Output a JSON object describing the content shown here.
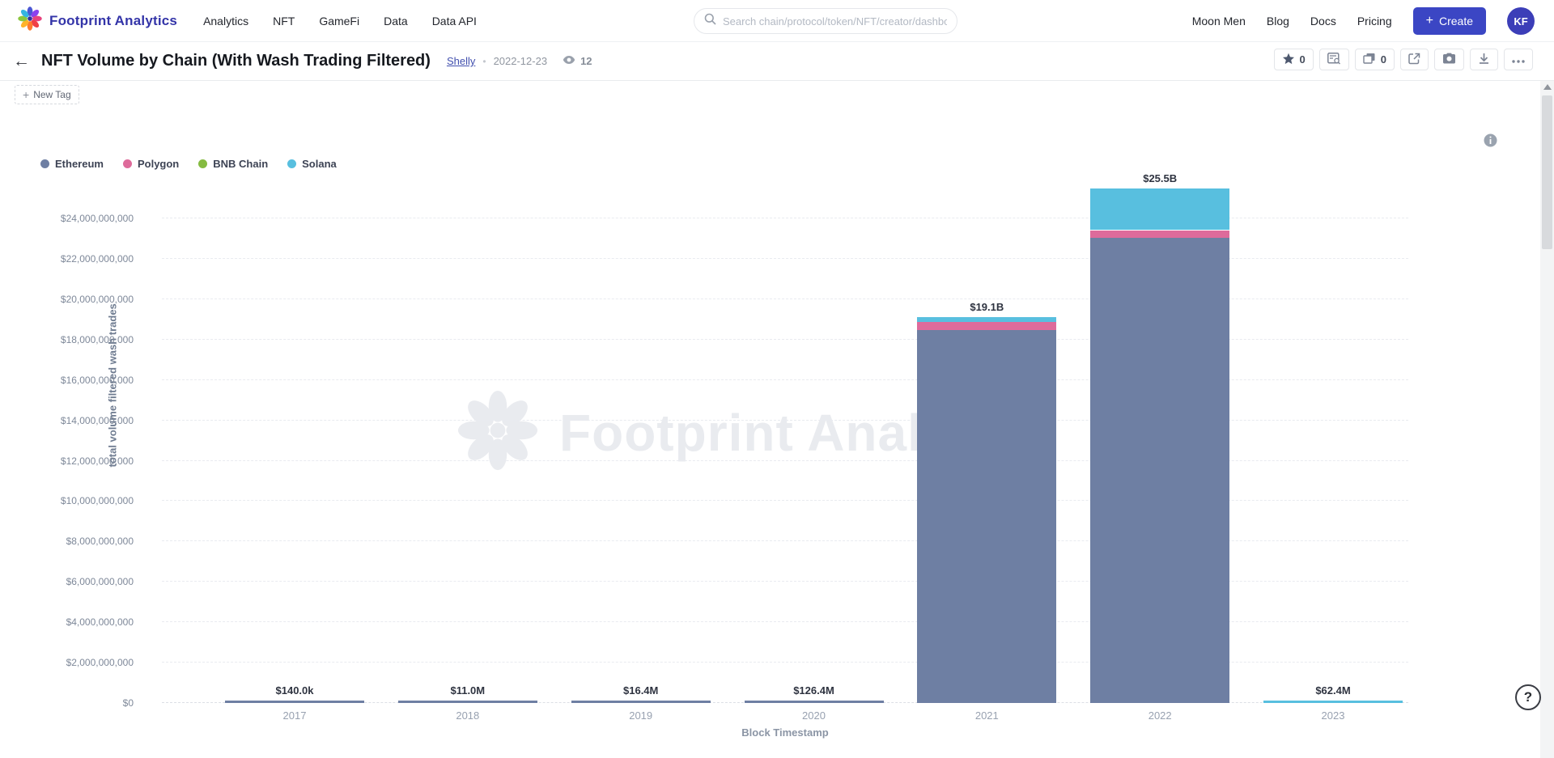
{
  "nav": {
    "brand": "Footprint Analytics",
    "items": [
      "Analytics",
      "NFT",
      "GameFi",
      "Data",
      "Data API"
    ],
    "search_placeholder": "Search chain/protocol/token/NFT/creator/dashboard...",
    "right_items": [
      "Moon Men",
      "Blog",
      "Docs",
      "Pricing"
    ],
    "create_plus": "+",
    "create_label": "Create",
    "avatar": "KF"
  },
  "header": {
    "title": "NFT Volume by Chain (With Wash Trading Filtered)",
    "author": "Shelly",
    "dot": "•",
    "date": "2022-12-23",
    "views": "12",
    "actions": [
      {
        "icon": "star-icon",
        "count": "0"
      },
      {
        "icon": "report-preview-icon"
      },
      {
        "icon": "duplicate-icon",
        "count": "0"
      },
      {
        "icon": "open-external-icon"
      },
      {
        "icon": "camera-icon"
      },
      {
        "icon": "download-icon"
      },
      {
        "icon": "more-icon"
      }
    ]
  },
  "tagbar": {
    "plus": "+",
    "new_tag_label": "New Tag"
  },
  "watermark": {
    "text": "Footprint Analytics"
  },
  "help_label": "?",
  "chart_data": {
    "type": "bar",
    "stacked": true,
    "categories": [
      "2017",
      "2018",
      "2019",
      "2020",
      "2021",
      "2022",
      "2023"
    ],
    "series": [
      {
        "name": "Ethereum",
        "color": "#6e7fa3",
        "values": [
          140000,
          11000000,
          16400000,
          124000000,
          18460000000,
          23020000000,
          10000000
        ]
      },
      {
        "name": "Polygon",
        "color": "#de6b9b",
        "values": [
          0,
          0,
          0,
          0,
          400000000,
          400000000,
          2400000
        ]
      },
      {
        "name": "BNB Chain",
        "color": "#85bb41",
        "values": [
          0,
          0,
          0,
          0,
          0,
          0,
          0
        ]
      },
      {
        "name": "Solana",
        "color": "#58bfdf",
        "values": [
          0,
          0,
          0,
          2400000,
          240000000,
          2080000000,
          50000000
        ]
      }
    ],
    "totals_values": [
      140000,
      11000000,
      16400000,
      126400000,
      19100000000,
      25500000000,
      62400000
    ],
    "totals_labels": [
      "$140.0k",
      "$11.0M",
      "$16.4M",
      "$126.4M",
      "$19.1B",
      "$25.5B",
      "$62.4M"
    ],
    "legend": [
      "Ethereum",
      "Polygon",
      "BNB Chain",
      "Solana"
    ],
    "xlabel": "Block Timestamp",
    "ylabel": "total volume filtered wash trades",
    "ylim": [
      0,
      24000000000
    ],
    "ytick_labels": [
      "$0",
      "$2,000,000,000",
      "$4,000,000,000",
      "$6,000,000,000",
      "$8,000,000,000",
      "$10,000,000,000",
      "$12,000,000,000",
      "$14,000,000,000",
      "$16,000,000,000",
      "$18,000,000,000",
      "$20,000,000,000",
      "$22,000,000,000",
      "$24,000,000,000"
    ],
    "grid": "dashed-horizontal",
    "legend_position": "top-left"
  }
}
